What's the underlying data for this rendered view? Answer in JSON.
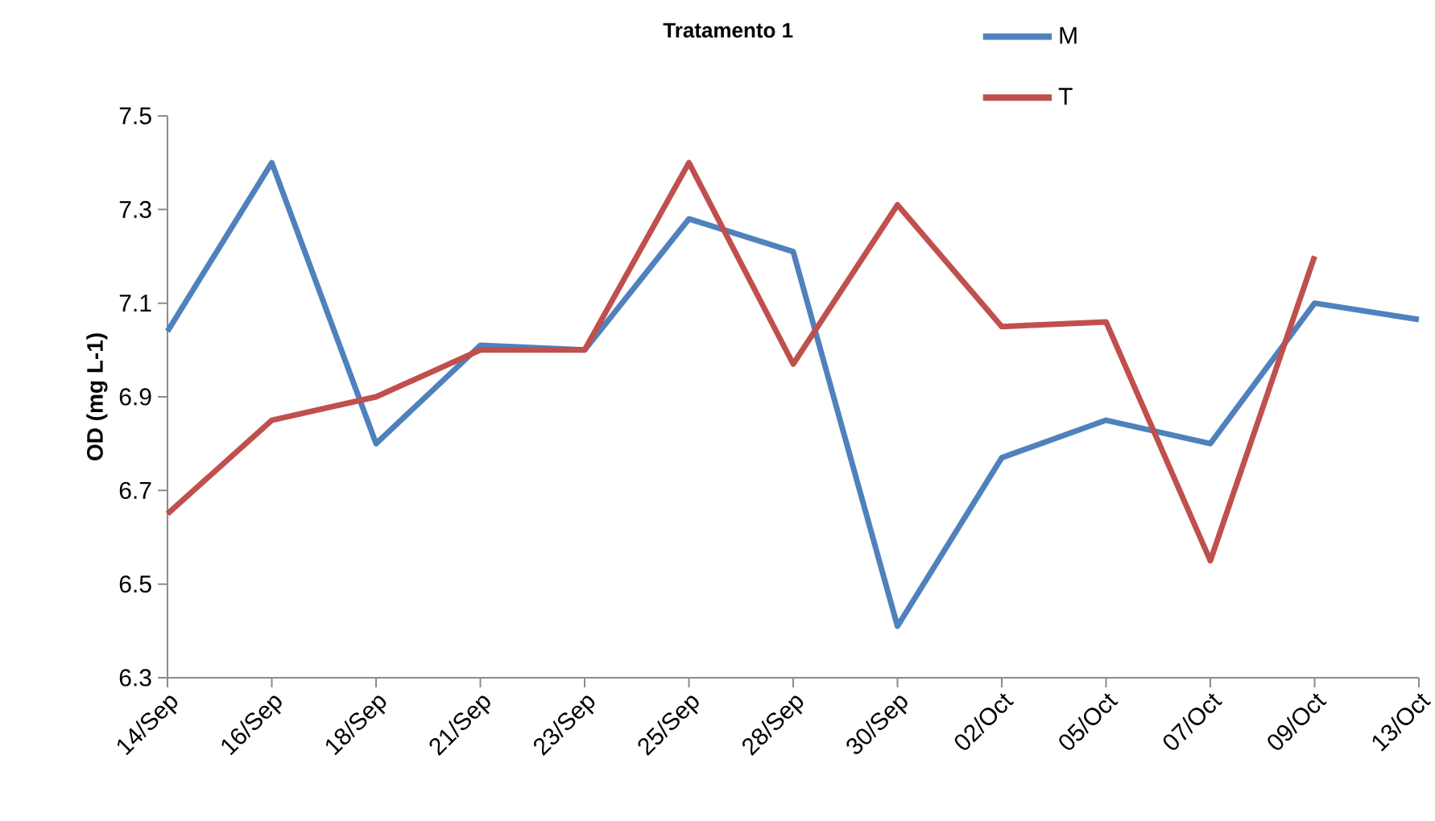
{
  "chart_data": {
    "type": "line",
    "title": "Tratamento 1",
    "ylabel": "OD (mg L-1)",
    "categories": [
      "14/Sep",
      "16/Sep",
      "18/Sep",
      "21/Sep",
      "23/Sep",
      "25/Sep",
      "28/Sep",
      "30/Sep",
      "02/Oct",
      "05/Oct",
      "07/Oct",
      "09/Oct",
      "13/Oct"
    ],
    "series": [
      {
        "name": "M",
        "color": "#4f81bd",
        "values": [
          7.04,
          7.4,
          6.8,
          7.01,
          7.0,
          7.28,
          7.21,
          6.41,
          6.77,
          6.85,
          6.8,
          7.1,
          7.065
        ]
      },
      {
        "name": "T",
        "color": "#c0504d",
        "values": [
          6.65,
          6.85,
          6.9,
          7.0,
          7.0,
          7.4,
          6.97,
          7.31,
          7.05,
          7.06,
          6.55,
          7.2,
          null
        ]
      }
    ],
    "ylim": [
      6.3,
      7.5
    ],
    "yticks": [
      6.3,
      6.5,
      6.7,
      6.9,
      7.1,
      7.3,
      7.5
    ],
    "grid": false,
    "legend": "top",
    "marker": "none",
    "line_style": "solid"
  }
}
